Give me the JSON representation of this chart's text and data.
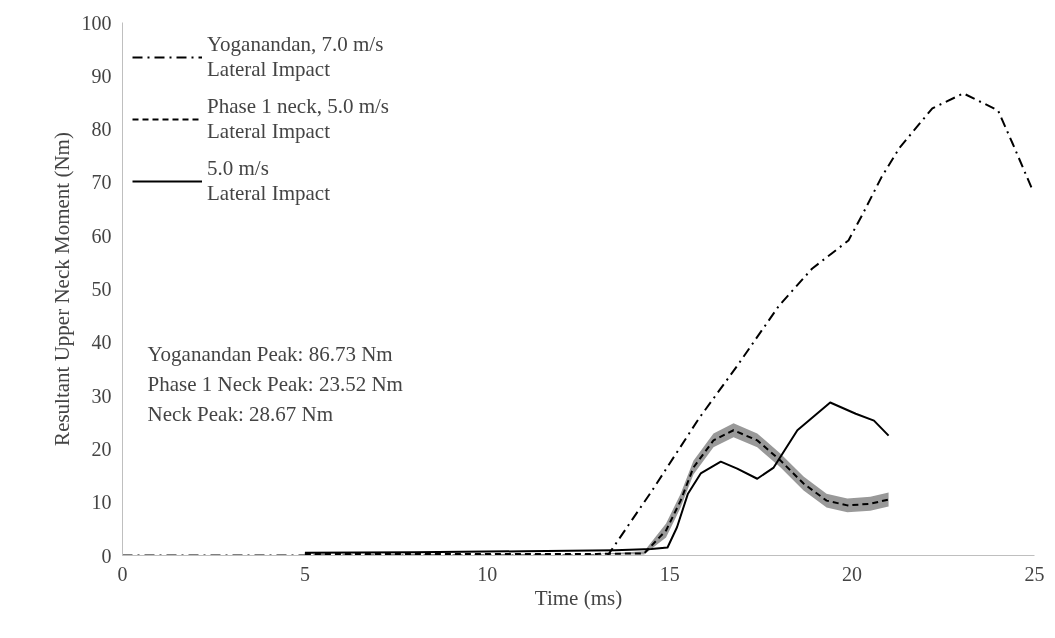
{
  "chart_data": {
    "type": "line",
    "xlabel": "Time (ms)",
    "ylabel": "Resultant Upper Neck Moment (Nm)",
    "xlim": [
      0,
      25
    ],
    "xticks": [
      0,
      5,
      10,
      15,
      20,
      25
    ],
    "ylim": [
      0,
      100
    ],
    "yticks": [
      0,
      10,
      20,
      30,
      40,
      50,
      60,
      70,
      80,
      90,
      100
    ],
    "grid": false,
    "legend": "top left",
    "marker": "none",
    "series": [
      {
        "name": "Yoganandan, 7.0 m/s\nLateral Impact",
        "color": "#000000",
        "line_style": "dashdot",
        "x": [
          0,
          5,
          10,
          13.3,
          14.5,
          15.8,
          16.8,
          18.0,
          18.9,
          19.9,
          20.3,
          20.8,
          21.3,
          22.2,
          23.05,
          24.0,
          24.4,
          24.95
        ],
        "values": [
          0,
          0,
          0,
          0,
          12,
          25.7,
          35.1,
          46.9,
          53.8,
          59.1,
          64.2,
          70.9,
          76.5,
          83.9,
          86.7,
          83.5,
          77.3,
          68.5
        ]
      },
      {
        "name": "Phase 1 neck, 5.0 m/s\nLateral Impact",
        "color": "#000000",
        "line_style": "dashed",
        "x": [
          5,
          8,
          11,
          13,
          14.3,
          14.9,
          15.3,
          15.65,
          16.2,
          16.75,
          17.4,
          18.04,
          18.67,
          19.3,
          19.87,
          20.5,
          21.0
        ],
        "values": [
          0.3,
          0.3,
          0.3,
          0.3,
          0.4,
          4.7,
          10.3,
          16.5,
          21.6,
          23.5,
          21.6,
          17.8,
          13.5,
          10.3,
          9.4,
          9.7,
          10.5
        ],
        "lower": [
          0.3,
          0.3,
          0.3,
          0.3,
          0.2,
          3.4,
          9.0,
          15.2,
          20.3,
          22.2,
          20.3,
          16.5,
          12.2,
          9.0,
          8.1,
          8.4,
          9.2
        ],
        "upper": [
          0.3,
          0.3,
          0.3,
          0.3,
          0.8,
          6.0,
          11.6,
          17.8,
          22.9,
          24.8,
          22.9,
          19.1,
          14.8,
          11.6,
          10.7,
          11.0,
          11.8
        ]
      },
      {
        "name": "5.0 m/s\nLateral Impact",
        "color": "#000000",
        "line_style": "solid",
        "x": [
          5,
          8,
          11,
          13.5,
          14.5,
          14.94,
          15.2,
          15.5,
          15.85,
          16.4,
          16.85,
          17.4,
          17.85,
          18.5,
          19.4,
          20.1,
          20.6,
          21.0
        ],
        "values": [
          0.5,
          0.6,
          0.8,
          1.0,
          1.2,
          1.5,
          5.3,
          11.6,
          15.4,
          17.6,
          16.3,
          14.4,
          16.5,
          23.5,
          28.7,
          26.6,
          25.3,
          22.5
        ]
      }
    ],
    "annotations": [
      "Yoganandan Peak: 86.73 Nm",
      "Phase 1 Neck Peak: 23.52 Nm",
      "Neck Peak: 28.67 Nm"
    ]
  }
}
